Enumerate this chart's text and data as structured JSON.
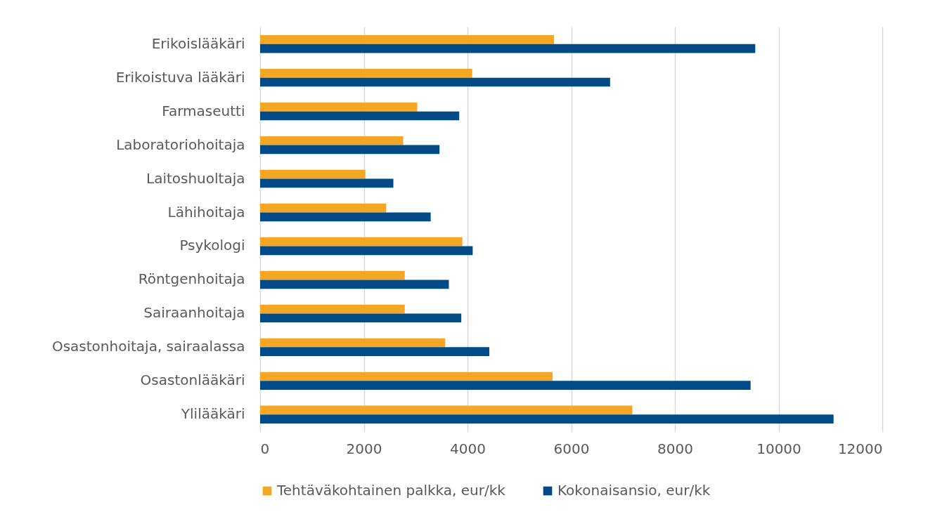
{
  "chart_data": {
    "type": "bar",
    "orientation": "horizontal",
    "categories": [
      "Erikoislääkäri",
      "Erikoistuva lääkäri",
      "Farmaseutti",
      "Laboratoriohoitaja",
      "Laitoshuoltaja",
      "Lähihoitaja",
      "Psykologi",
      "Röntgenhoitaja",
      "Sairaanhoitaja",
      "Osastonhoitaja, sairaalassa",
      "Osastonlääkäri",
      "Ylilääkäri"
    ],
    "series": [
      {
        "name": "Tehtäväkohtainen palkka, eur/kk",
        "color": "#f5a623",
        "values": [
          5670,
          4090,
          3030,
          2760,
          2030,
          2430,
          3900,
          2790,
          2790,
          3570,
          5640,
          7180
        ]
      },
      {
        "name": "Kokonaisansio, eur/kk",
        "color": "#004a87",
        "values": [
          9550,
          6750,
          3840,
          3460,
          2570,
          3290,
          4100,
          3640,
          3880,
          4420,
          9460,
          11060
        ]
      }
    ],
    "xlim": [
      0,
      12000
    ],
    "xticks": [
      0,
      2000,
      4000,
      6000,
      8000,
      10000,
      12000
    ],
    "grid": "x",
    "legend": "bottom"
  }
}
